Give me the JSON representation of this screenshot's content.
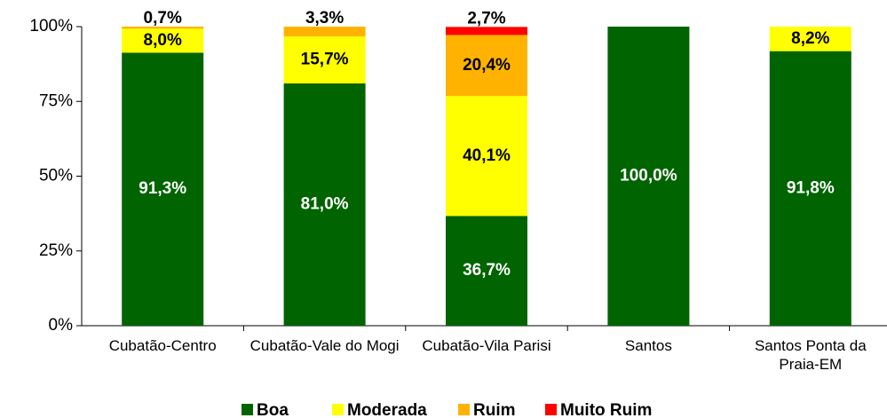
{
  "chart_data": {
    "type": "stacked_bar",
    "categories": [
      "Cubatão-Centro",
      "Cubatão-Vale do Mogi",
      "Cubatão-Vila Parisi",
      "Santos",
      "Santos Ponta da Praia-EM"
    ],
    "series": [
      {
        "name": "Boa",
        "color": "#006400",
        "label_color": "#ffffff",
        "values": [
          91.3,
          81.0,
          36.7,
          100.0,
          91.8
        ],
        "value_labels": [
          "91,3%",
          "81,0%",
          "36,7%",
          "100,0%",
          "91,8%"
        ]
      },
      {
        "name": "Moderada",
        "color": "#ffff00",
        "label_color": "#000000",
        "values": [
          8.0,
          15.7,
          40.1,
          0,
          8.2
        ],
        "value_labels": [
          "8,0%",
          "15,7%",
          "40,1%",
          null,
          "8,2%"
        ]
      },
      {
        "name": "Ruim",
        "color": "#ffb300",
        "label_color": "#000000",
        "values": [
          0.7,
          3.3,
          20.4,
          0,
          0
        ],
        "value_labels": [
          "0,7%",
          "3,3%",
          "20,4%",
          null,
          null
        ]
      },
      {
        "name": "Muito Ruim",
        "color": "#ff0000",
        "label_color": "#000000",
        "values": [
          0,
          0,
          2.7,
          0,
          0
        ],
        "value_labels": [
          null,
          null,
          "2,7%",
          null,
          null
        ]
      }
    ],
    "ylim": [
      0,
      100
    ],
    "yticks": [
      {
        "value": 0,
        "label": "0%"
      },
      {
        "value": 25,
        "label": "25%"
      },
      {
        "value": 50,
        "label": "50%"
      },
      {
        "value": 75,
        "label": "75%"
      },
      {
        "value": 100,
        "label": "100%"
      }
    ],
    "grid": false,
    "legend": "bottom"
  }
}
